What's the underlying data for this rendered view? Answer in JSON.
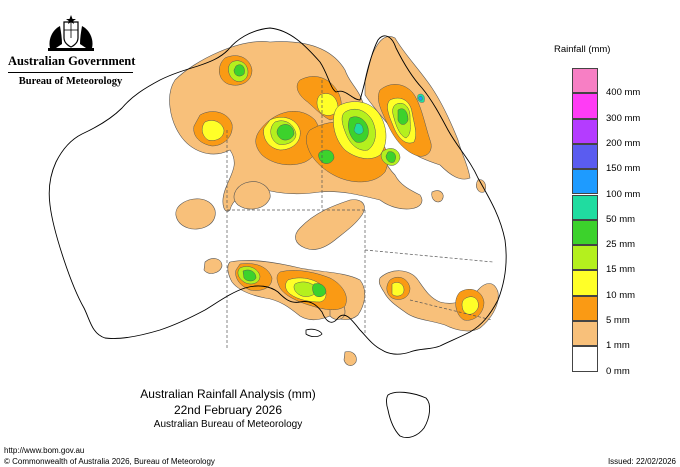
{
  "header": {
    "government": "Australian Government",
    "agency": "Bureau of Meteorology"
  },
  "legend": {
    "title": "Rainfall (mm)",
    "classes": [
      {
        "label": "",
        "color": "#f77fc4"
      },
      {
        "label": "400 mm",
        "color": "#ff3cf5"
      },
      {
        "label": "300 mm",
        "color": "#b43cff"
      },
      {
        "label": "200 mm",
        "color": "#5a5cf0"
      },
      {
        "label": "150 mm",
        "color": "#1e9bff"
      },
      {
        "label": "100 mm",
        "color": "#20dca0"
      },
      {
        "label": "50 mm",
        "color": "#3cd22c"
      },
      {
        "label": "25 mm",
        "color": "#b4f01e"
      },
      {
        "label": "15 mm",
        "color": "#ffff28"
      },
      {
        "label": "10 mm",
        "color": "#fa9a14"
      },
      {
        "label": "5 mm",
        "color": "#f8c07a"
      },
      {
        "label": "1 mm",
        "color": "#ffffff"
      },
      {
        "label": "0 mm",
        "color": ""
      }
    ]
  },
  "caption": {
    "title": "Australian Rainfall Analysis (mm)",
    "date": "22nd February 2026",
    "agency": "Australian Bureau of Meteorology"
  },
  "footer": {
    "url": "http://www.bom.gov.au",
    "copyright": "© Commonwealth of Australia 2026, Bureau of Meteorology",
    "issued": "Issued: 22/02/2026"
  },
  "colors": {
    "r1": "#f8c07a",
    "r5": "#fa9a14",
    "r10": "#ffff28",
    "r15": "#b4f01e",
    "r25": "#3cd22c",
    "r50": "#20dca0",
    "r100": "#1e9bff",
    "r150": "#5a5cf0"
  }
}
